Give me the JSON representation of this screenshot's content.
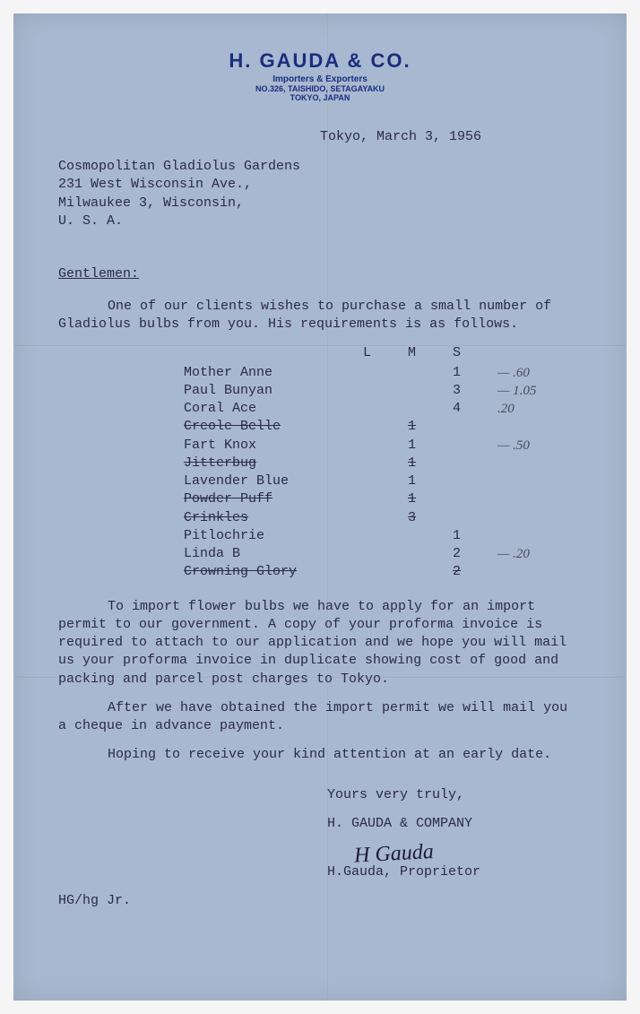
{
  "letterhead": {
    "company": "H. GAUDA & CO.",
    "subtitle": "Importers & Exporters",
    "address1": "NO.326, TAISHIDO, SETAGAYAKU",
    "address2": "TOKYO, JAPAN"
  },
  "date": "Tokyo, March 3, 1956",
  "recipient": {
    "line1": "Cosmopolitan Gladiolus Gardens",
    "line2": "231 West Wisconsin Ave.,",
    "line3": "Milwaukee 3, Wisconsin,",
    "line4": "U. S. A."
  },
  "salutation": "Gentlemen:",
  "para1": "One of our clients wishes to purchase a small number of Gladiolus bulbs from you.  His requirements is as follows.",
  "table": {
    "headers": {
      "l": "L",
      "m": "M",
      "s": "S"
    },
    "rows": [
      {
        "name": "Mother Anne",
        "l": "",
        "m": "",
        "s": "1",
        "struck": false,
        "annot": "—  .60"
      },
      {
        "name": "Paul Bunyan",
        "l": "",
        "m": "",
        "s": "3",
        "struck": false,
        "annot": "—  1.05"
      },
      {
        "name": "Coral Ace",
        "l": "",
        "m": "",
        "s": "4",
        "struck": false,
        "annot": "   .20"
      },
      {
        "name": "Creole Belle",
        "l": "",
        "m": "1",
        "s": "",
        "struck": true,
        "annot": ""
      },
      {
        "name": "Fart Knox",
        "l": "",
        "m": "1",
        "s": "",
        "struck": false,
        "annot": "—  .50"
      },
      {
        "name": "Jitterbug",
        "l": "",
        "m": "1",
        "s": "",
        "struck": true,
        "annot": ""
      },
      {
        "name": "Lavender Blue",
        "l": "",
        "m": "1",
        "s": "",
        "struck": false,
        "annot": ""
      },
      {
        "name": "Powder Puff",
        "l": "",
        "m": "1",
        "s": "",
        "struck": true,
        "annot": ""
      },
      {
        "name": "Crinkles",
        "l": "",
        "m": "3",
        "s": "",
        "struck": true,
        "annot": ""
      },
      {
        "name": "Pitlochrie",
        "l": "",
        "m": "",
        "s": "1",
        "struck": false,
        "annot": ""
      },
      {
        "name": "Linda B",
        "l": "",
        "m": "",
        "s": "2",
        "struck": false,
        "annot": "—  .20"
      },
      {
        "name": "Crowning Glory",
        "l": "",
        "m": "",
        "s": "2",
        "struck": true,
        "annot": ""
      }
    ]
  },
  "para2": "To import flower bulbs we have to apply for an import permit to our government.  A copy of your proforma invoice is required to attach to our application and we hope you will mail us your proforma invoice in duplicate showing cost of good and packing and parcel post charges to Tokyo.",
  "para3": "After we have obtained the import permit we will mail you a cheque in advance payment.",
  "para4": "Hoping to receive your kind attention at an early date.",
  "closing": {
    "valediction": "Yours very truly,",
    "company": "H. GAUDA & COMPANY",
    "signature": "H Gauda",
    "name": "H.Gauda, Proprietor"
  },
  "initials": "HG/hg Jr.",
  "colors": {
    "paper": "#a8b8d0",
    "ink": "#2a2a4a",
    "letterhead": "#1a2d7e",
    "pencil": "#4a4a5a"
  }
}
